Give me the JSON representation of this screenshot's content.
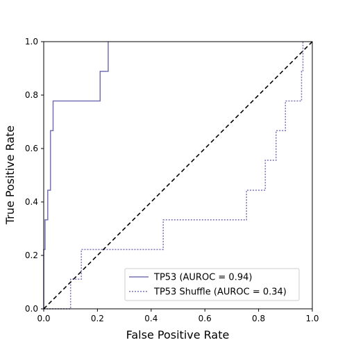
{
  "chart_data": {
    "type": "line",
    "title": "",
    "xlabel": "False Positive Rate",
    "ylabel": "True Positive Rate",
    "xlim": [
      0,
      1
    ],
    "ylim": [
      0,
      1
    ],
    "xticks": [
      "0.0",
      "0.2",
      "0.4",
      "0.6",
      "0.8",
      "1.0"
    ],
    "yticks": [
      "0.0",
      "0.2",
      "0.4",
      "0.6",
      "0.8",
      "1.0"
    ],
    "grid": false,
    "legend_position": "lower-right",
    "series": [
      {
        "name": "TP53 (AUROC = 0.94)",
        "style": "solid",
        "color": "#7570b3",
        "x": [
          0,
          0,
          0.005,
          0.005,
          0.015,
          0.015,
          0.025,
          0.025,
          0.035,
          0.035,
          0.21,
          0.21,
          0.24,
          0.24
        ],
        "y": [
          0,
          0.222,
          0.222,
          0.333,
          0.333,
          0.444,
          0.444,
          0.667,
          0.667,
          0.778,
          0.778,
          0.889,
          0.889,
          1.0
        ]
      },
      {
        "name": "TP53 Shuffle (AUROC = 0.34)",
        "style": "dotted",
        "color": "#7570b3",
        "x": [
          0,
          0.1,
          0.1,
          0.14,
          0.14,
          0.445,
          0.445,
          0.755,
          0.755,
          0.825,
          0.825,
          0.865,
          0.865,
          0.9,
          0.9,
          0.96,
          0.96,
          0.965,
          0.965
        ],
        "y": [
          0,
          0,
          0.111,
          0.111,
          0.222,
          0.222,
          0.333,
          0.333,
          0.444,
          0.444,
          0.556,
          0.556,
          0.667,
          0.667,
          0.778,
          0.778,
          0.889,
          0.889,
          1.0
        ]
      },
      {
        "name": "",
        "style": "dashed",
        "color": "#000000",
        "x": [
          0,
          1
        ],
        "y": [
          0,
          1
        ]
      }
    ]
  }
}
